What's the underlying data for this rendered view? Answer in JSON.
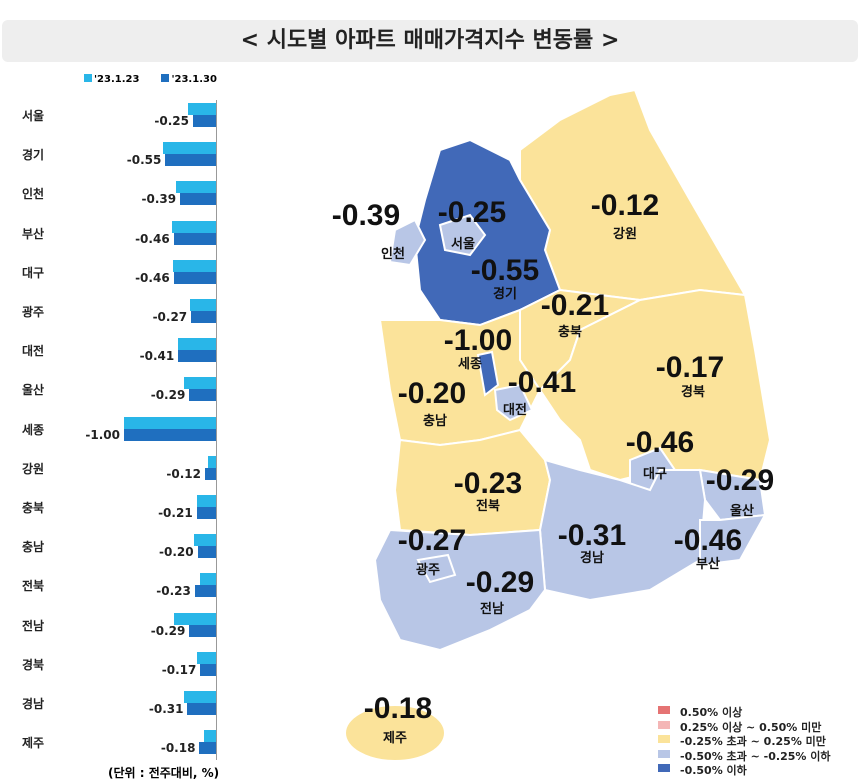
{
  "title": "< 시도별 아파트 매매가격지수 변동률 >",
  "unit_note": "(단위 : 전주대비, %)",
  "colors": {
    "prev": "#29b6e8",
    "curr": "#1f6fbf",
    "map_up50": "#e57373",
    "map_up25": "#f4b6b6",
    "map_flat": "#fbe39a",
    "map_down25": "#b8c6e6",
    "map_down50": "#4169b8"
  },
  "chart_data": {
    "type": "bar",
    "orientation": "horizontal",
    "categories": [
      "서울",
      "경기",
      "인천",
      "부산",
      "대구",
      "광주",
      "대전",
      "울산",
      "세종",
      "강원",
      "충북",
      "충남",
      "전북",
      "전남",
      "경북",
      "경남",
      "제주"
    ],
    "series": [
      {
        "name": "'23.1.23",
        "values": [
          -0.3,
          -0.58,
          -0.43,
          -0.48,
          -0.47,
          -0.28,
          -0.41,
          -0.35,
          -1.0,
          -0.09,
          -0.21,
          -0.24,
          -0.17,
          -0.46,
          -0.21,
          -0.35,
          -0.13
        ]
      },
      {
        "name": "'23.1.30",
        "values": [
          -0.25,
          -0.55,
          -0.39,
          -0.46,
          -0.46,
          -0.27,
          -0.41,
          -0.29,
          -1.0,
          -0.12,
          -0.21,
          -0.2,
          -0.23,
          -0.29,
          -0.17,
          -0.31,
          -0.18
        ]
      }
    ],
    "data_labels": [
      "-0.25",
      "-0.55",
      "-0.39",
      "-0.46",
      "-0.46",
      "-0.27",
      "-0.41",
      "-0.29",
      "-1.00",
      "-0.12",
      "-0.21",
      "-0.20",
      "-0.23",
      "-0.29",
      "-0.17",
      "-0.31",
      "-0.18"
    ],
    "xlim": [
      -1.0,
      0
    ],
    "legend": "top"
  },
  "map": {
    "regions": [
      {
        "name": "인천",
        "value": "-0.39",
        "cls": "down25"
      },
      {
        "name": "서울",
        "value": "-0.25",
        "cls": "down25"
      },
      {
        "name": "경기",
        "value": "-0.55",
        "cls": "down50"
      },
      {
        "name": "강원",
        "value": "-0.12",
        "cls": "flat"
      },
      {
        "name": "충북",
        "value": "-0.21",
        "cls": "flat"
      },
      {
        "name": "세종",
        "value": "-1.00",
        "cls": "down50"
      },
      {
        "name": "대전",
        "value": "-0.41",
        "cls": "down25"
      },
      {
        "name": "충남",
        "value": "-0.20",
        "cls": "flat"
      },
      {
        "name": "경북",
        "value": "-0.17",
        "cls": "flat"
      },
      {
        "name": "대구",
        "value": "-0.46",
        "cls": "down25"
      },
      {
        "name": "울산",
        "value": "-0.29",
        "cls": "down25"
      },
      {
        "name": "전북",
        "value": "-0.23",
        "cls": "flat"
      },
      {
        "name": "경남",
        "value": "-0.31",
        "cls": "down25"
      },
      {
        "name": "부산",
        "value": "-0.46",
        "cls": "down25"
      },
      {
        "name": "광주",
        "value": "-0.27",
        "cls": "down25"
      },
      {
        "name": "전남",
        "value": "-0.29",
        "cls": "down25"
      },
      {
        "name": "제주",
        "value": "-0.18",
        "cls": "flat"
      }
    ],
    "legend": [
      "0.50% 이상",
      "0.25% 이상 ~ 0.50% 미만",
      "-0.25% 초과 ~ 0.25% 미만",
      "-0.50% 초과 ~ -0.25% 이하",
      "-0.50% 이하"
    ]
  }
}
